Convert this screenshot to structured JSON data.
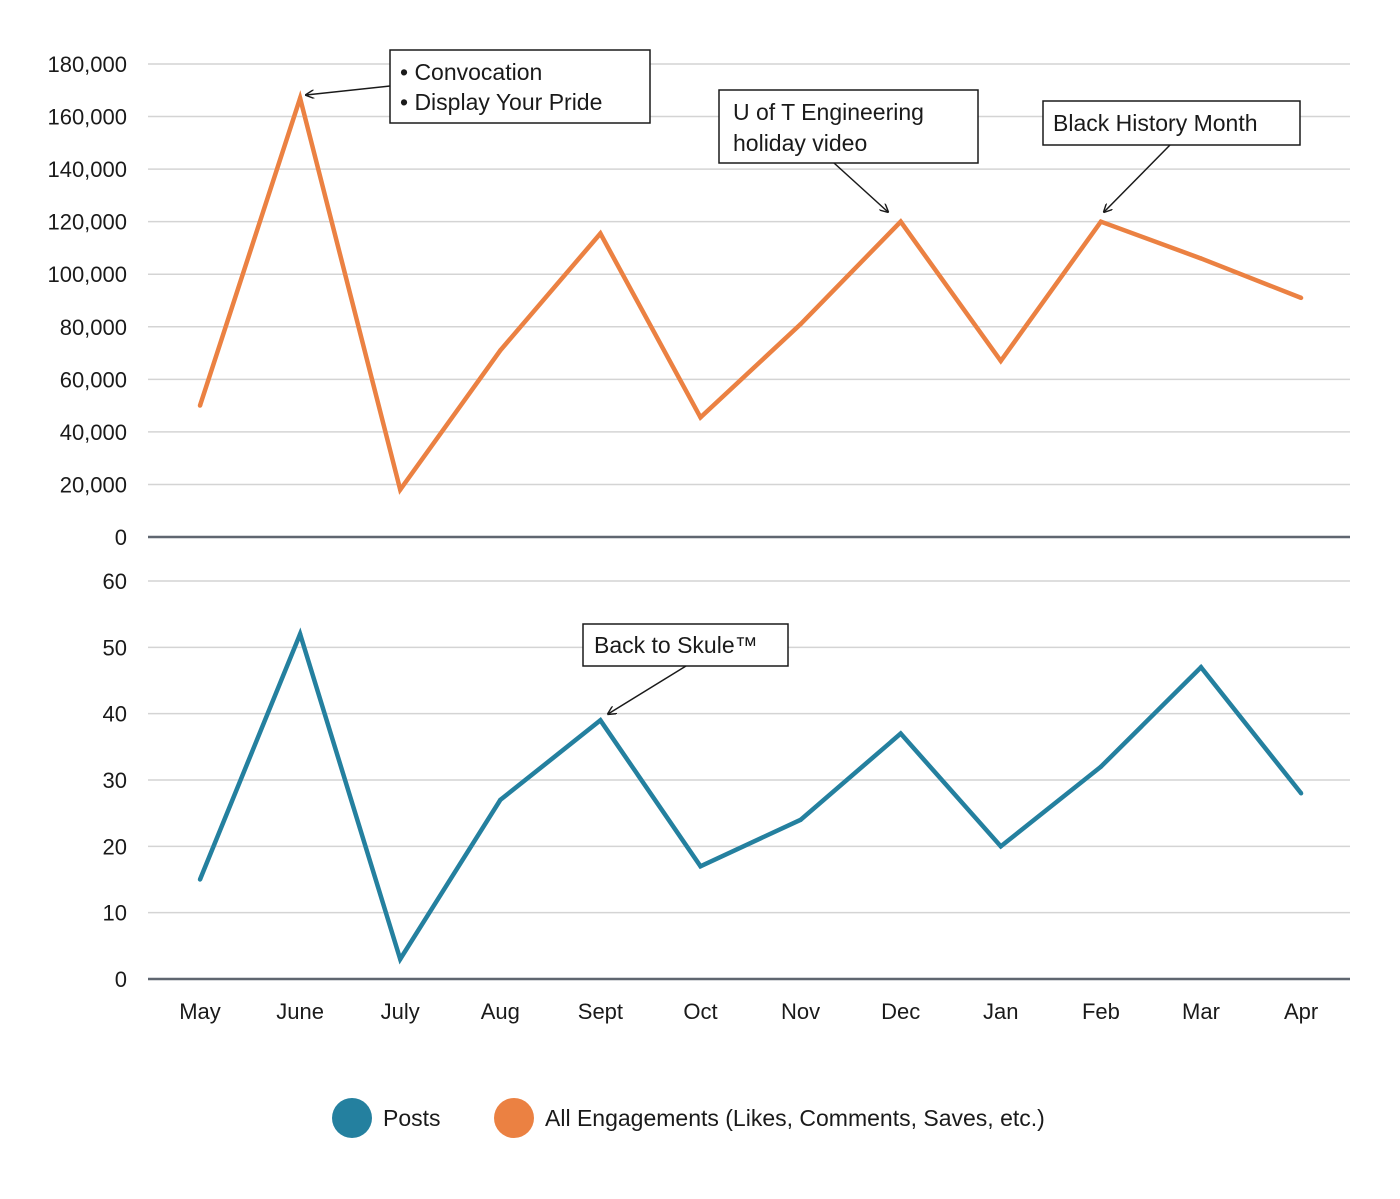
{
  "chart_data": [
    {
      "type": "line",
      "categories": [
        "May",
        "June",
        "July",
        "Aug",
        "Sept",
        "Oct",
        "Nov",
        "Dec",
        "Jan",
        "Feb",
        "Mar",
        "Apr"
      ],
      "series": [
        {
          "name": "All Engagements (Likes, Comments, Saves, etc.)",
          "color": "#EB8142",
          "values": [
            50000,
            167000,
            18000,
            71000,
            115500,
            45500,
            81000,
            120000,
            67000,
            120000,
            106000,
            91000
          ]
        }
      ],
      "ylim": [
        0,
        180000
      ],
      "yticks": [
        0,
        20000,
        40000,
        60000,
        80000,
        100000,
        120000,
        140000,
        160000,
        180000
      ],
      "ytick_labels": [
        "0",
        "20,000",
        "40,000",
        "60,000",
        "80,000",
        "100,000",
        "120,000",
        "140,000",
        "160,000",
        "180,000"
      ],
      "grid": true,
      "annotations": [
        {
          "lines": [
            "• Convocation",
            "• Display Your Pride"
          ],
          "category": "June"
        },
        {
          "lines": [
            "U of T Engineering",
            "holiday video"
          ],
          "category": "Dec"
        },
        {
          "lines": [
            "Black History Month"
          ],
          "category": "Feb"
        }
      ]
    },
    {
      "type": "line",
      "categories": [
        "May",
        "June",
        "July",
        "Aug",
        "Sept",
        "Oct",
        "Nov",
        "Dec",
        "Jan",
        "Feb",
        "Mar",
        "Apr"
      ],
      "series": [
        {
          "name": "Posts",
          "color": "#24809F",
          "values": [
            15,
            52,
            3,
            27,
            39,
            17,
            24,
            37,
            20,
            32,
            47,
            28
          ]
        }
      ],
      "ylim": [
        0,
        60
      ],
      "yticks": [
        0,
        10,
        20,
        30,
        40,
        50,
        60
      ],
      "ytick_labels": [
        "0",
        "10",
        "20",
        "30",
        "40",
        "50",
        "60"
      ],
      "xtick_labels": [
        "May",
        "June",
        "July",
        "Aug",
        "Sept",
        "Oct",
        "Nov",
        "Dec",
        "Jan",
        "Feb",
        "Mar",
        "Apr"
      ],
      "grid": true,
      "annotations": [
        {
          "lines": [
            "Back to Skule™"
          ],
          "category": "Sept"
        }
      ]
    }
  ],
  "legend": {
    "placement": "bottom-center",
    "items": [
      {
        "label": "Posts",
        "color": "#24809F"
      },
      {
        "label": "All Engagements (Likes, Comments, Saves, etc.)",
        "color": "#EB8142"
      }
    ]
  }
}
